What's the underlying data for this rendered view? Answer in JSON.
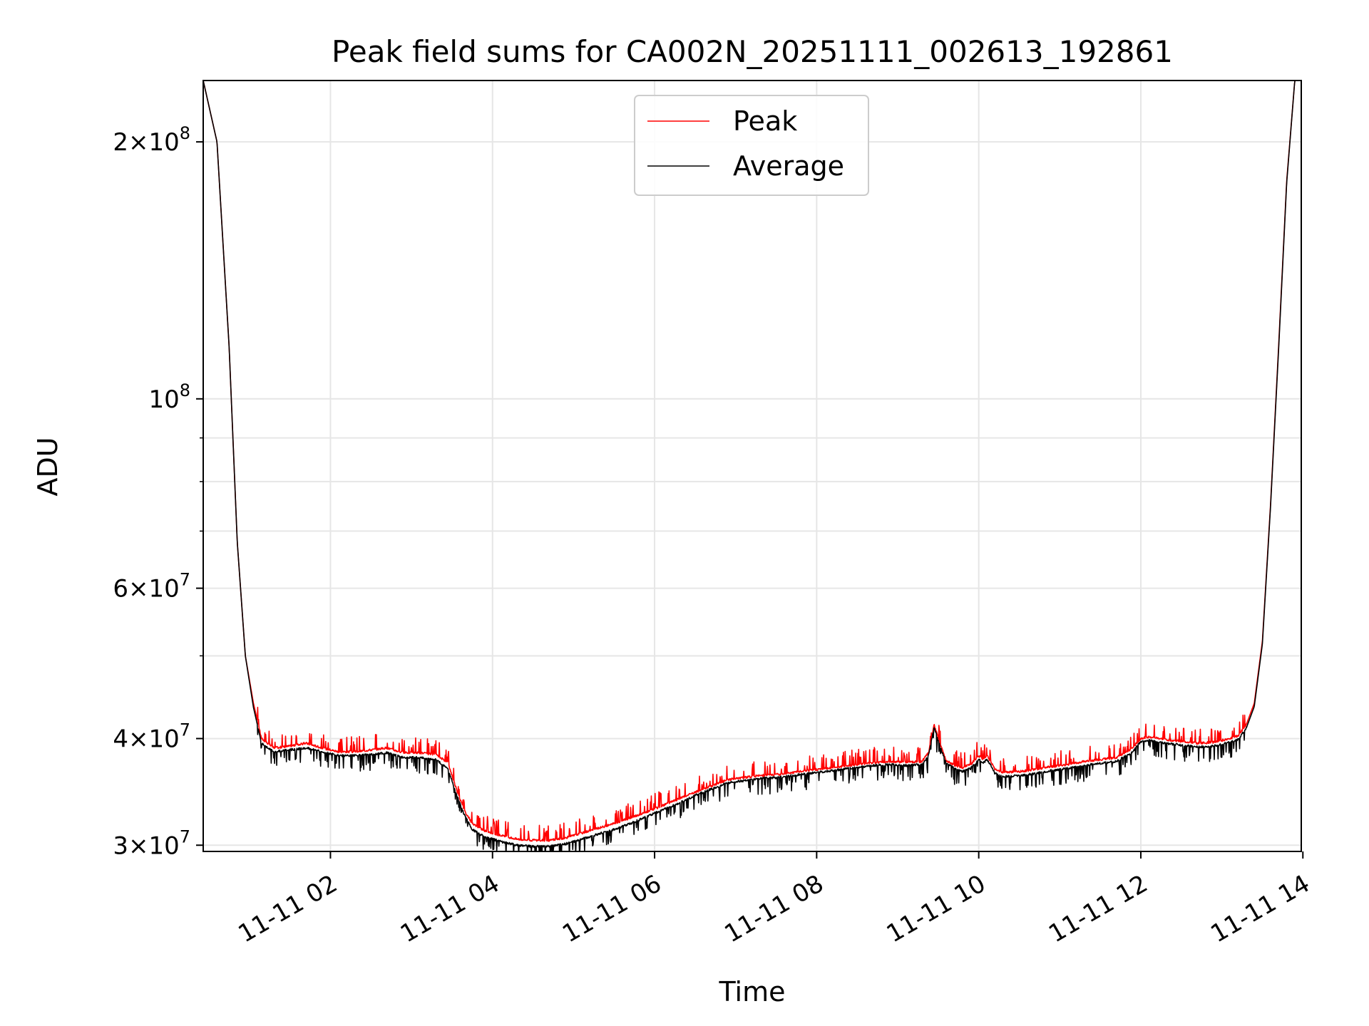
{
  "chart_data": {
    "type": "line",
    "title": "Peak field sums for CA002N_20251111_002613_192861",
    "xlabel": "Time",
    "ylabel": "ADU",
    "yscale": "log",
    "x_unit": "hours since 11-11 00:00",
    "xlim": [
      0.43,
      13.98
    ],
    "ylim": [
      29500000,
      236000000
    ],
    "grid": true,
    "legend_position": "upper-center",
    "x_ticks": [
      {
        "value": 2,
        "label": "11-11 02"
      },
      {
        "value": 4,
        "label": "11-11 04"
      },
      {
        "value": 6,
        "label": "11-11 06"
      },
      {
        "value": 8,
        "label": "11-11 08"
      },
      {
        "value": 10,
        "label": "11-11 10"
      },
      {
        "value": 12,
        "label": "11-11 12"
      },
      {
        "value": 14,
        "label": "11-11 14"
      }
    ],
    "y_major_ticks": [
      {
        "value": 30000000,
        "mant": "3",
        "exp": "7"
      },
      {
        "value": 40000000,
        "mant": "4",
        "exp": "7"
      },
      {
        "value": 60000000,
        "mant": "6",
        "exp": "7"
      },
      {
        "value": 100000000,
        "mant": "",
        "exp": "8"
      },
      {
        "value": 200000000,
        "mant": "2",
        "exp": "8"
      }
    ],
    "y_minor_grid": [
      50000000,
      70000000,
      80000000,
      90000000
    ],
    "series": [
      {
        "name": "Peak",
        "color": "#ff0000",
        "x": [
          0.43,
          0.6,
          0.75,
          0.85,
          0.95,
          1.05,
          1.15,
          1.3,
          1.5,
          1.7,
          1.9,
          2.1,
          2.3,
          2.5,
          2.7,
          2.9,
          3.1,
          3.3,
          3.45,
          3.55,
          3.65,
          3.75,
          3.9,
          4.1,
          4.3,
          4.5,
          4.7,
          4.9,
          5.1,
          5.3,
          5.5,
          5.7,
          5.9,
          6.1,
          6.3,
          6.5,
          6.7,
          6.9,
          7.1,
          7.3,
          7.5,
          7.7,
          7.9,
          8.1,
          8.3,
          8.5,
          8.7,
          8.9,
          9.1,
          9.3,
          9.38,
          9.45,
          9.52,
          9.6,
          9.7,
          9.8,
          9.9,
          10.0,
          10.05,
          10.1,
          10.15,
          10.2,
          10.3,
          10.5,
          10.7,
          10.9,
          11.1,
          11.3,
          11.5,
          11.7,
          11.9,
          12.0,
          12.1,
          12.3,
          12.5,
          12.7,
          12.9,
          13.05,
          13.2,
          13.3,
          13.4,
          13.5,
          13.6,
          13.7,
          13.8,
          13.9,
          13.98
        ],
        "y": [
          236000000,
          200000000,
          115000000,
          68000000,
          50000000,
          44000000,
          40000000,
          39000000,
          39200000,
          39500000,
          39000000,
          38600000,
          38600000,
          38800000,
          39000000,
          38500000,
          38500000,
          38300000,
          37500000,
          35000000,
          33000000,
          31800000,
          31200000,
          30800000,
          30500000,
          30400000,
          30400000,
          30600000,
          31000000,
          31400000,
          31800000,
          32300000,
          32800000,
          33400000,
          34000000,
          34600000,
          35200000,
          35800000,
          36000000,
          36200000,
          36300000,
          36500000,
          36700000,
          36900000,
          37100000,
          37300000,
          37500000,
          37600000,
          37500000,
          37600000,
          38500000,
          41500000,
          39500000,
          37700000,
          37200000,
          37000000,
          37300000,
          38200000,
          37800000,
          38200000,
          37600000,
          36800000,
          36500000,
          36600000,
          36800000,
          37100000,
          37300000,
          37600000,
          37800000,
          38000000,
          39000000,
          40000000,
          40200000,
          39900000,
          39700000,
          39500000,
          39600000,
          39900000,
          40300000,
          41500000,
          44000000,
          52000000,
          75000000,
          115000000,
          180000000,
          236000000,
          236000000
        ]
      },
      {
        "name": "Average",
        "color": "#000000",
        "x": [
          0.43,
          0.6,
          0.75,
          0.85,
          0.95,
          1.05,
          1.15,
          1.3,
          1.5,
          1.7,
          1.9,
          2.1,
          2.3,
          2.5,
          2.7,
          2.9,
          3.1,
          3.3,
          3.45,
          3.55,
          3.65,
          3.75,
          3.9,
          4.1,
          4.3,
          4.5,
          4.7,
          4.9,
          5.1,
          5.3,
          5.5,
          5.7,
          5.9,
          6.1,
          6.3,
          6.5,
          6.7,
          6.9,
          7.1,
          7.3,
          7.5,
          7.7,
          7.9,
          8.1,
          8.3,
          8.5,
          8.7,
          8.9,
          9.1,
          9.3,
          9.38,
          9.45,
          9.52,
          9.6,
          9.7,
          9.8,
          9.9,
          10.0,
          10.05,
          10.1,
          10.15,
          10.2,
          10.3,
          10.5,
          10.7,
          10.9,
          11.1,
          11.3,
          11.5,
          11.7,
          11.9,
          12.0,
          12.1,
          12.3,
          12.5,
          12.7,
          12.9,
          13.05,
          13.2,
          13.3,
          13.4,
          13.5,
          13.6,
          13.7,
          13.8,
          13.9,
          13.98
        ],
        "y": [
          236000000,
          200000000,
          115000000,
          68000000,
          50000000,
          43500000,
          39500000,
          38600000,
          38800000,
          39000000,
          38600000,
          38200000,
          38200000,
          38300000,
          38500000,
          38000000,
          38000000,
          37800000,
          36900000,
          34500000,
          32600000,
          31300000,
          30700000,
          30300000,
          30000000,
          29900000,
          29900000,
          30100000,
          30500000,
          30900000,
          31300000,
          31800000,
          32400000,
          33000000,
          33600000,
          34300000,
          34900000,
          35500000,
          35700000,
          35900000,
          36000000,
          36200000,
          36400000,
          36600000,
          36800000,
          37000000,
          37200000,
          37300000,
          37200000,
          37300000,
          38200000,
          41200000,
          39200000,
          37400000,
          36900000,
          36600000,
          36900000,
          37800000,
          37400000,
          37800000,
          37200000,
          36400000,
          36100000,
          36200000,
          36400000,
          36700000,
          36900000,
          37200000,
          37400000,
          37600000,
          38600000,
          39700000,
          39800000,
          39500000,
          39300000,
          39100000,
          39200000,
          39500000,
          39900000,
          41100000,
          43600000,
          51600000,
          74500000,
          114000000,
          179000000,
          236000000,
          236000000
        ]
      }
    ]
  }
}
